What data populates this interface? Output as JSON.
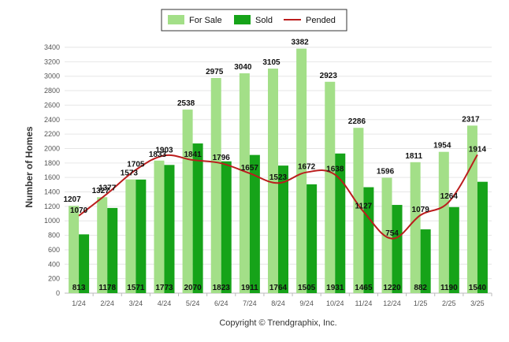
{
  "chart_data": {
    "type": "bar",
    "ylabel": "Number of Homes",
    "ylim": [
      0,
      3400
    ],
    "ytick_step": 200,
    "grid": true,
    "legend_position": "top-center",
    "categories": [
      "1/24",
      "2/24",
      "3/24",
      "4/24",
      "5/24",
      "6/24",
      "7/24",
      "8/24",
      "9/24",
      "10/24",
      "11/24",
      "12/24",
      "1/25",
      "2/25",
      "3/25"
    ],
    "series": [
      {
        "name": "For Sale",
        "kind": "bar",
        "color": "#a3df88",
        "values": [
          1207,
          1327,
          1573,
          1833,
          2538,
          2975,
          3040,
          3105,
          3382,
          2923,
          2286,
          1596,
          1811,
          1954,
          2317
        ]
      },
      {
        "name": "Sold",
        "kind": "bar",
        "color": "#16a319",
        "values": [
          813,
          1178,
          1571,
          1773,
          2070,
          1823,
          1911,
          1764,
          1505,
          1931,
          1465,
          1220,
          882,
          1190,
          1540
        ]
      },
      {
        "name": "Pended",
        "kind": "line",
        "color": "#bb1d1d",
        "values": [
          1070,
          1377,
          1705,
          1903,
          1841,
          1796,
          1657,
          1523,
          1672,
          1638,
          1127,
          754,
          1079,
          1264,
          1914
        ]
      }
    ],
    "credit": "Copyright © Trendgraphix, Inc."
  }
}
